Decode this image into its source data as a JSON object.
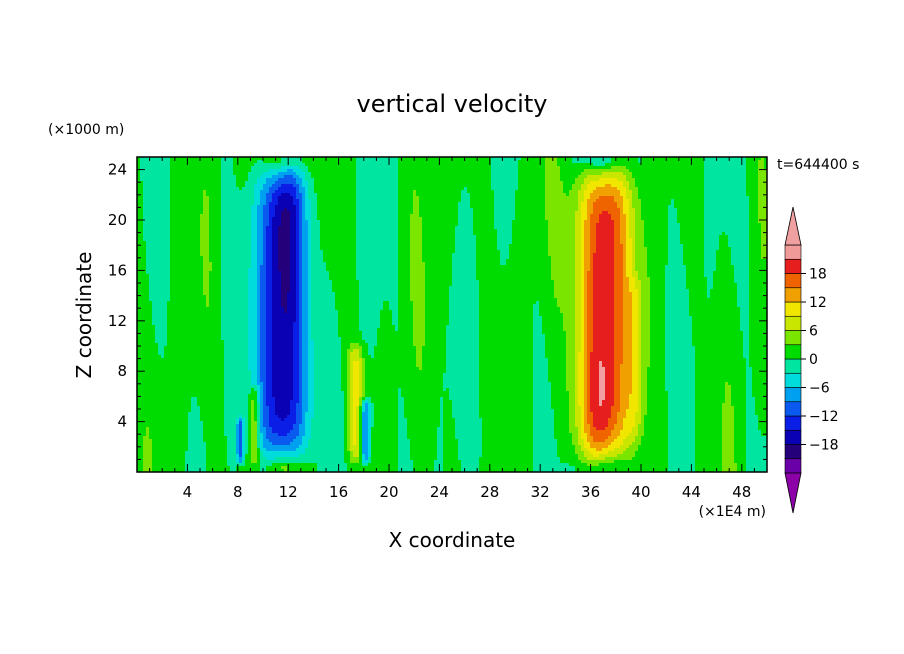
{
  "chart_data": {
    "type": "heatmap",
    "title": "vertical velocity",
    "xlabel": "X coordinate",
    "ylabel": "Z coordinate",
    "x_unit": "(×1E4 m)",
    "y_unit": "(×1000 m)",
    "time_label": "t=644400 s",
    "xlim": [
      0,
      50
    ],
    "ylim": [
      0,
      25
    ],
    "x_ticks": [
      4,
      8,
      12,
      16,
      20,
      24,
      28,
      32,
      36,
      40,
      44,
      48
    ],
    "y_ticks": [
      4,
      8,
      12,
      16,
      20,
      24
    ],
    "colorbar": {
      "levels": [
        -21,
        -18,
        -15,
        -12,
        -9,
        -6,
        -3,
        0,
        3,
        6,
        9,
        12,
        15,
        18,
        21
      ],
      "labeled_ticks": [
        18,
        12,
        6,
        0,
        -6,
        -12,
        -18
      ],
      "colors": [
        "#6a00a8",
        "#24007a",
        "#0a00b4",
        "#0a1ee6",
        "#0a5af0",
        "#00a0f0",
        "#00dcdc",
        "#00e6a0",
        "#00dc00",
        "#7ae600",
        "#c8e600",
        "#f0e600",
        "#f0a000",
        "#f06400",
        "#e61e1e",
        "#f09a9a"
      ],
      "under_color": "#8c00a8",
      "over_color": "#f0a0a0"
    },
    "features": [
      {
        "kind": "downdraft",
        "x_center": 11.6,
        "z_bottom": 0.5,
        "z_top": 24.5,
        "half_width": 1.8,
        "min_value": -21
      },
      {
        "kind": "updraft",
        "x_center": 37.0,
        "z_bottom": 0.5,
        "z_top": 24.5,
        "half_width": 2.0,
        "max_value": 22
      },
      {
        "kind": "updraft",
        "x_center": 17.4,
        "z_bottom": 0.5,
        "z_top": 10.5,
        "half_width": 0.6,
        "max_value": 9
      },
      {
        "kind": "downdraft",
        "x_center": 18.1,
        "z_bottom": 0.5,
        "z_top": 6.0,
        "half_width": 0.4,
        "min_value": -12
      },
      {
        "kind": "updraft",
        "x_center": 9.3,
        "z_bottom": 0.5,
        "z_top": 7.0,
        "half_width": 0.4,
        "max_value": 8
      },
      {
        "kind": "downdraft",
        "x_center": 8.2,
        "z_bottom": 0.5,
        "z_top": 4.5,
        "half_width": 0.3,
        "min_value": -10
      },
      {
        "kind": "updraft",
        "x_center": 39.5,
        "z_bottom": 2.0,
        "z_top": 16.0,
        "half_width": 0.6,
        "max_value": 4
      }
    ]
  }
}
